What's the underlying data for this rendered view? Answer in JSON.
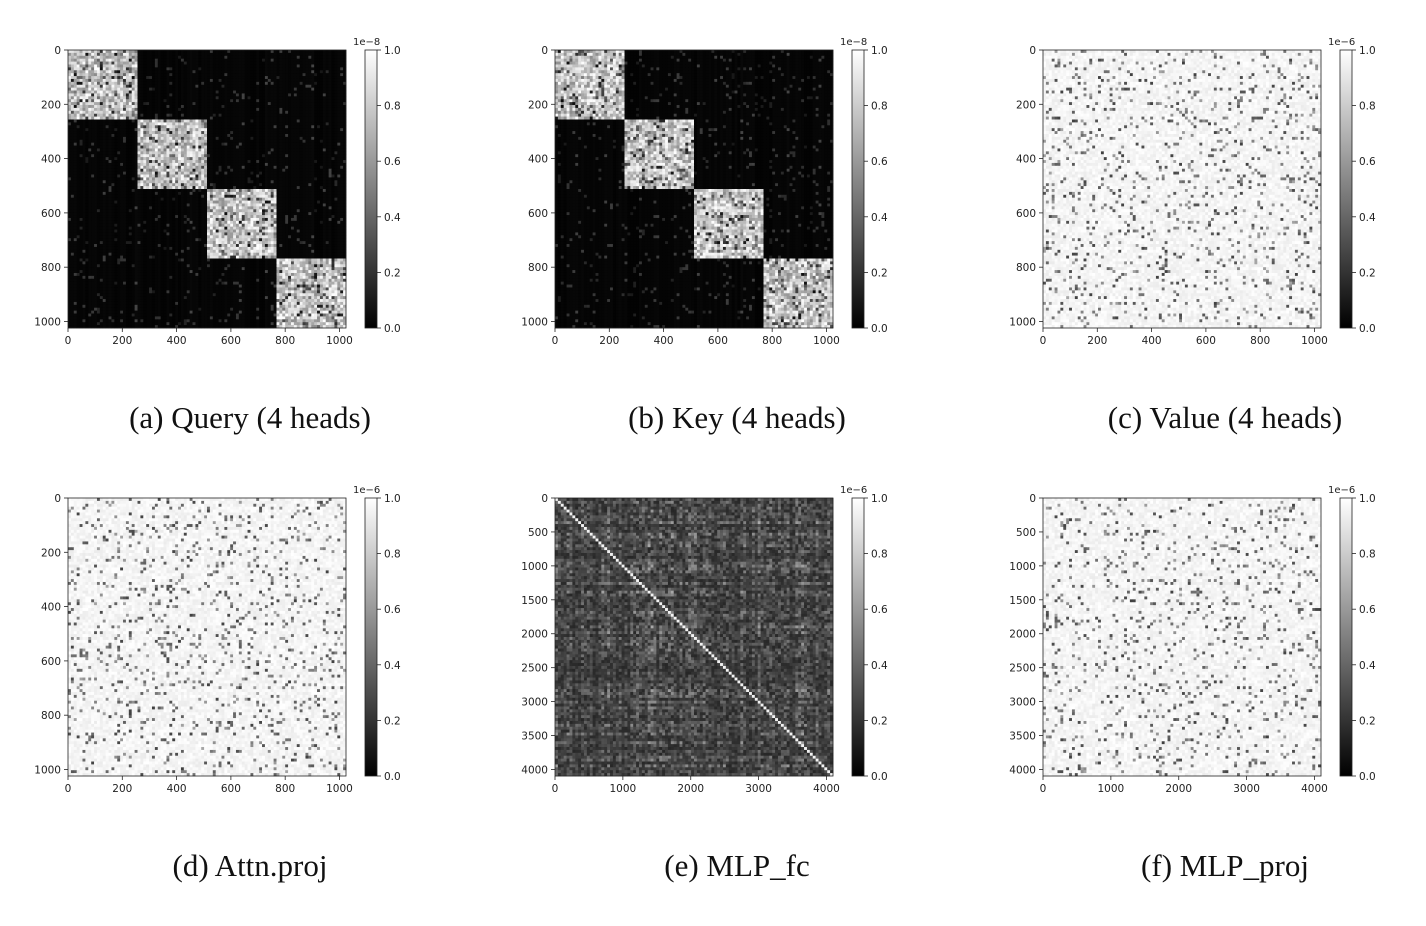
{
  "chart_data": [
    {
      "type": "heatmap",
      "caption": "(a) Query (4 heads)",
      "pattern": "block-diagonal",
      "blocks": 4,
      "matrix_size": 1024,
      "xticks": [
        "0",
        "200",
        "400",
        "600",
        "800",
        "1000"
      ],
      "yticks": [
        "0",
        "200",
        "400",
        "600",
        "800",
        "1000"
      ],
      "tick_values": [
        0,
        200,
        400,
        600,
        800,
        1000
      ],
      "colorbar": {
        "exponent": "1e−8",
        "ticks": [
          "0.0",
          "0.2",
          "0.4",
          "0.6",
          "0.8",
          "1.0"
        ],
        "range": [
          0,
          1
        ]
      }
    },
    {
      "type": "heatmap",
      "caption": "(b) Key (4 heads)",
      "pattern": "block-diagonal",
      "blocks": 4,
      "matrix_size": 1024,
      "xticks": [
        "0",
        "200",
        "400",
        "600",
        "800",
        "1000"
      ],
      "yticks": [
        "0",
        "200",
        "400",
        "600",
        "800",
        "1000"
      ],
      "tick_values": [
        0,
        200,
        400,
        600,
        800,
        1000
      ],
      "colorbar": {
        "exponent": "1e−8",
        "ticks": [
          "0.0",
          "0.2",
          "0.4",
          "0.6",
          "0.8",
          "1.0"
        ],
        "range": [
          0,
          1
        ]
      }
    },
    {
      "type": "heatmap",
      "caption": "(c) Value (4 heads)",
      "pattern": "sparse-dark-noise",
      "matrix_size": 1024,
      "xticks": [
        "0",
        "200",
        "400",
        "600",
        "800",
        "1000"
      ],
      "yticks": [
        "0",
        "200",
        "400",
        "600",
        "800",
        "1000"
      ],
      "tick_values": [
        0,
        200,
        400,
        600,
        800,
        1000
      ],
      "colorbar": {
        "exponent": "1e−6",
        "ticks": [
          "0.0",
          "0.2",
          "0.4",
          "0.6",
          "0.8",
          "1.0"
        ],
        "range": [
          0,
          1
        ]
      }
    },
    {
      "type": "heatmap",
      "caption": "(d) Attn.proj",
      "pattern": "sparse-dark-noise",
      "matrix_size": 1024,
      "xticks": [
        "0",
        "200",
        "400",
        "600",
        "800",
        "1000"
      ],
      "yticks": [
        "0",
        "200",
        "400",
        "600",
        "800",
        "1000"
      ],
      "tick_values": [
        0,
        200,
        400,
        600,
        800,
        1000
      ],
      "colorbar": {
        "exponent": "1e−6",
        "ticks": [
          "0.0",
          "0.2",
          "0.4",
          "0.6",
          "0.8",
          "1.0"
        ],
        "range": [
          0,
          1
        ]
      }
    },
    {
      "type": "heatmap",
      "caption": "(e) MLP_fc",
      "pattern": "dense-dark-with-bright-diagonal",
      "matrix_size": 4096,
      "xticks": [
        "0",
        "1000",
        "2000",
        "3000",
        "4000"
      ],
      "yticks": [
        "0",
        "500",
        "1000",
        "1500",
        "2000",
        "2500",
        "3000",
        "3500",
        "4000"
      ],
      "xtick_values": [
        0,
        1000,
        2000,
        3000,
        4000
      ],
      "ytick_values": [
        0,
        500,
        1000,
        1500,
        2000,
        2500,
        3000,
        3500,
        4000
      ],
      "colorbar": {
        "exponent": "1e−6",
        "ticks": [
          "0.0",
          "0.2",
          "0.4",
          "0.6",
          "0.8",
          "1.0"
        ],
        "range": [
          0,
          1
        ]
      }
    },
    {
      "type": "heatmap",
      "caption": "(f) MLP_proj",
      "pattern": "sparse-dark-noise",
      "matrix_size": 4096,
      "xticks": [
        "0",
        "1000",
        "2000",
        "3000",
        "4000"
      ],
      "yticks": [
        "0",
        "500",
        "1000",
        "1500",
        "2000",
        "2500",
        "3000",
        "3500",
        "4000"
      ],
      "xtick_values": [
        0,
        1000,
        2000,
        3000,
        4000
      ],
      "ytick_values": [
        0,
        500,
        1000,
        1500,
        2000,
        2500,
        3000,
        3500,
        4000
      ],
      "colorbar": {
        "exponent": "1e−6",
        "ticks": [
          "0.0",
          "0.2",
          "0.4",
          "0.6",
          "0.8",
          "1.0"
        ],
        "range": [
          0,
          1
        ]
      }
    }
  ]
}
